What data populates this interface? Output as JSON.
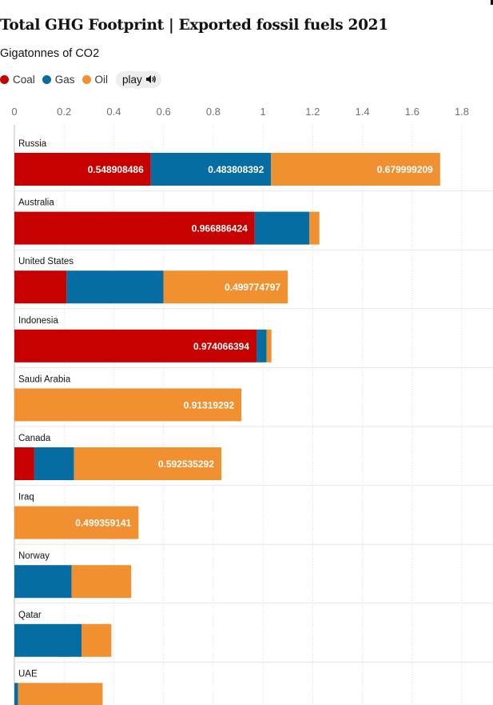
{
  "title": "Total GHG Footprint | Exported fossil fuels 2021",
  "subtitle": "Gigatonnes of CO2",
  "legend": {
    "coal": "Coal",
    "gas": "Gas",
    "oil": "Oil",
    "play_label": "play"
  },
  "colors": {
    "coal": "#c70000",
    "gas": "#056da1",
    "oil": "#f09030",
    "grid": "#dcdcdc",
    "tick": "#707070"
  },
  "chart_data": {
    "type": "bar",
    "orientation": "horizontal",
    "stacked": true,
    "title": "Total GHG Footprint | Exported fossil fuels 2021",
    "xlabel": "Gigatonnes of CO2",
    "ylabel": "",
    "xlim": [
      0,
      1.8
    ],
    "ticks": [
      0,
      0.2,
      0.4,
      0.6,
      0.8,
      1,
      1.2,
      1.4,
      1.6,
      1.8
    ],
    "tick_labels": [
      "0",
      "0.2",
      "0.4",
      "0.6",
      "0.8",
      "1",
      "1.2",
      "1.4",
      "1.6",
      "1.8"
    ],
    "grid": true,
    "legend_position": "top-left",
    "categories": [
      "Russia",
      "Australia",
      "United States",
      "Indonesia",
      "Saudi Arabia",
      "Canada",
      "Iraq",
      "Norway",
      "Qatar",
      "UAE"
    ],
    "series": [
      {
        "name": "Coal",
        "key": "coal",
        "values": [
          0.548908486,
          0.966886424,
          0.21,
          0.974066394,
          0,
          0.08,
          0,
          0,
          0,
          0
        ],
        "labels": [
          "0.548908486",
          "0.966886424",
          "",
          "0.974066394",
          "",
          "",
          "",
          "",
          "",
          ""
        ]
      },
      {
        "name": "Gas",
        "key": "gas",
        "values": [
          0.483808392,
          0.22,
          0.39,
          0.04,
          0,
          0.16,
          0,
          0.23,
          0.27,
          0.015
        ],
        "labels": [
          "0.483808392",
          "",
          "",
          "",
          "",
          "",
          "",
          "",
          "",
          ""
        ]
      },
      {
        "name": "Oil",
        "key": "oil",
        "values": [
          0.679999209,
          0.04,
          0.499774797,
          0.02,
          0.91319292,
          0.592535292,
          0.499359141,
          0.24,
          0.12,
          0.34
        ],
        "labels": [
          "0.679999209",
          "",
          "0.499774797",
          "",
          "0.91319292",
          "0.592535292",
          "0.499359141",
          "",
          "",
          ""
        ]
      }
    ]
  }
}
